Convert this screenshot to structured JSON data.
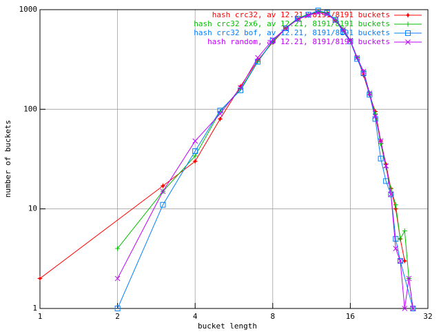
{
  "chart_data": {
    "type": "line",
    "xlabel": "bucket length",
    "ylabel": "number of buckets",
    "xscale": "log",
    "yscale": "log",
    "grid": true,
    "legend": "upper right",
    "xlim": [
      1,
      32
    ],
    "xticks": [
      1,
      2,
      4,
      8,
      16,
      32
    ],
    "ylim": [
      1,
      1000
    ],
    "yticks": [
      1,
      10,
      100,
      1000
    ],
    "series": [
      {
        "name": "hash crc32, av 12.21, 8191/8191 buckets",
        "color": "#ff0000",
        "marker": "plus-diamond",
        "x": [
          1,
          3,
          4,
          5,
          6,
          7,
          8,
          9,
          10,
          11,
          12,
          13,
          14,
          15,
          16,
          17,
          18,
          19,
          20,
          21,
          22,
          23,
          24,
          25,
          26
        ],
        "values": [
          2,
          17,
          30,
          80,
          170,
          310,
          470,
          650,
          800,
          880,
          950,
          920,
          780,
          620,
          490,
          330,
          220,
          140,
          95,
          48,
          28,
          16,
          10,
          5,
          3
        ]
      },
      {
        "name": "hash crc32 2x6, av 12.21, 8191/8191 buckets",
        "color": "#00c000",
        "marker": "plus",
        "x": [
          2,
          3,
          4,
          5,
          6,
          7,
          8,
          9,
          10,
          11,
          12,
          13,
          14,
          15,
          16,
          17,
          18,
          19,
          20,
          21,
          22,
          23,
          24,
          25,
          26,
          27,
          28
        ],
        "values": [
          4,
          15,
          34,
          95,
          160,
          300,
          480,
          660,
          820,
          900,
          960,
          920,
          800,
          640,
          490,
          330,
          240,
          145,
          90,
          45,
          26,
          16,
          11,
          5,
          6,
          2,
          1
        ]
      },
      {
        "name": "hash crc32 bof, av 12.21, 8191/8191 buckets",
        "color": "#0080ff",
        "marker": "square",
        "x": [
          2,
          3,
          4,
          5,
          6,
          7,
          8,
          9,
          10,
          11,
          12,
          13,
          14,
          15,
          16,
          17,
          18,
          19,
          20,
          21,
          22,
          23,
          24,
          25,
          28
        ],
        "values": [
          1,
          11,
          38,
          97,
          155,
          300,
          490,
          650,
          810,
          890,
          980,
          930,
          790,
          600,
          480,
          320,
          230,
          140,
          80,
          32,
          19,
          14,
          5,
          3,
          1
        ]
      },
      {
        "name": "hash random, av 12.21, 8191/8191 buckets",
        "color": "#c000ff",
        "marker": "cross",
        "x": [
          2,
          3,
          4,
          5,
          6,
          7,
          8,
          9,
          10,
          11,
          12,
          13,
          14,
          15,
          16,
          17,
          18,
          19,
          20,
          21,
          22,
          23,
          24,
          25,
          26,
          27,
          28
        ],
        "values": [
          2,
          15,
          48,
          90,
          165,
          330,
          500,
          650,
          800,
          880,
          930,
          900,
          780,
          630,
          490,
          330,
          240,
          145,
          85,
          48,
          27,
          14,
          4,
          3,
          1,
          2,
          1
        ]
      }
    ]
  }
}
